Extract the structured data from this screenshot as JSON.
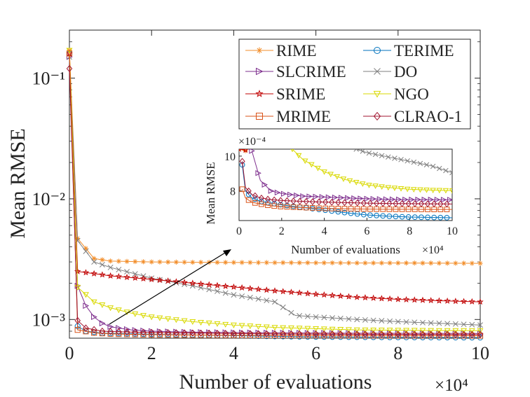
{
  "chart_data": [
    {
      "type": "line",
      "ylabel": "Mean RMSE",
      "xlabel": "Number of evaluations",
      "x_exponent_label": "×10⁴",
      "yscale": "log",
      "xlim": [
        0,
        10
      ],
      "ylim": [
        0.0007,
        0.25
      ],
      "x_ticks": [
        0,
        2,
        4,
        6,
        8,
        10
      ],
      "x_tick_labels": [
        "0",
        "2",
        "4",
        "6",
        "8",
        "10"
      ],
      "y_ticks": [
        0.001,
        0.01,
        0.1
      ],
      "y_tick_labels": [
        "10⁻³",
        "10⁻²",
        "10⁻¹"
      ],
      "grid": false,
      "legend_position": "top-right",
      "series": [
        {
          "name": "RIME",
          "color": "#f28e2b",
          "marker": "star",
          "x": [
            0,
            0.2,
            0.6,
            1,
            2,
            3,
            4,
            5,
            6,
            7,
            8,
            9,
            10
          ],
          "y": [
            0.17,
            0.0047,
            0.0032,
            0.00305,
            0.003,
            0.00298,
            0.00297,
            0.00296,
            0.00295,
            0.00294,
            0.00294,
            0.00293,
            0.00292
          ]
        },
        {
          "name": "TERIME",
          "color": "#0072bd",
          "marker": "circle",
          "x": [
            0,
            0.2,
            0.4,
            0.8,
            1.5,
            2,
            3,
            4,
            5,
            6,
            7,
            8,
            9,
            10
          ],
          "y": [
            0.16,
            0.00088,
            0.0008,
            0.00077,
            0.000762,
            0.000755,
            0.000745,
            0.000735,
            0.000725,
            0.000718,
            0.000715,
            0.000712,
            0.00071,
            0.000708
          ]
        },
        {
          "name": "SLCRIME",
          "color": "#7e2f8e",
          "marker": "triangle-right",
          "x": [
            0,
            0.2,
            0.4,
            0.6,
            0.8,
            1,
            1.5,
            2,
            3,
            4,
            5,
            6,
            7,
            8,
            9,
            10
          ],
          "y": [
            0.15,
            0.0019,
            0.0013,
            0.00105,
            0.00093,
            0.00087,
            0.00082,
            0.0008,
            0.000785,
            0.00078,
            0.000775,
            0.000772,
            0.00077,
            0.000768,
            0.000767,
            0.000766
          ]
        },
        {
          "name": "DO",
          "color": "#7f7f7f",
          "marker": "x",
          "x": [
            0,
            0.2,
            0.6,
            1,
            2,
            3,
            4,
            4.5,
            5,
            5.5,
            6,
            7,
            8,
            9,
            10
          ],
          "y": [
            0.15,
            0.0045,
            0.003,
            0.0027,
            0.0022,
            0.0019,
            0.0016,
            0.0015,
            0.0014,
            0.00108,
            0.00105,
            0.001,
            0.00096,
            0.00093,
            0.0009
          ]
        },
        {
          "name": "SRIME",
          "color": "#c00000",
          "marker": "pentagram",
          "x": [
            0,
            0.2,
            0.6,
            1,
            2,
            3,
            4,
            5,
            6,
            7,
            8,
            9,
            10
          ],
          "y": [
            0.16,
            0.0025,
            0.0024,
            0.0023,
            0.00215,
            0.002,
            0.00186,
            0.00173,
            0.00162,
            0.00153,
            0.00147,
            0.00143,
            0.0014
          ]
        },
        {
          "name": "NGO",
          "color": "#d9d900",
          "marker": "triangle-down",
          "x": [
            0,
            0.2,
            0.6,
            1,
            1.5,
            2,
            3,
            4,
            5,
            6,
            7,
            8,
            9,
            10
          ],
          "y": [
            0.17,
            0.00185,
            0.0014,
            0.00125,
            0.00113,
            0.00105,
            0.00096,
            0.0009,
            0.00086,
            0.00084,
            0.00082,
            0.000815,
            0.00081,
            0.000808
          ]
        },
        {
          "name": "MRIME",
          "color": "#d95319",
          "marker": "square",
          "x": [
            0,
            0.2,
            0.6,
            1,
            2,
            3,
            4,
            5,
            6,
            7,
            8,
            9,
            10
          ],
          "y": [
            0.16,
            0.00082,
            0.000775,
            0.00076,
            0.000748,
            0.000743,
            0.00074,
            0.000738,
            0.000737,
            0.000736,
            0.000735,
            0.000735,
            0.000734
          ]
        },
        {
          "name": "CLRAO-1",
          "color": "#a2142f",
          "marker": "diamond",
          "x": [
            0,
            0.2,
            0.4,
            0.8,
            1.5,
            2,
            3,
            4,
            5,
            6,
            7,
            8,
            9,
            10
          ],
          "y": [
            0.12,
            0.00098,
            0.00085,
            0.0008,
            0.000785,
            0.00078,
            0.000772,
            0.000765,
            0.00076,
            0.000757,
            0.000755,
            0.000753,
            0.000752,
            0.000751
          ]
        }
      ]
    },
    {
      "type": "line",
      "ylabel": "Mean RMSE",
      "xlabel": "Number of evaluations",
      "x_exponent_label": "×10⁴",
      "y_exponent_label": "×10⁻⁴",
      "yscale": "linear",
      "xlim": [
        0,
        10
      ],
      "ylim": [
        6.3,
        10.4
      ],
      "x_ticks": [
        0,
        2,
        4,
        6,
        8,
        10
      ],
      "x_tick_labels": [
        "0",
        "2",
        "4",
        "6",
        "8",
        "10"
      ],
      "y_ticks": [
        8,
        10
      ],
      "y_tick_labels": [
        "8",
        "10"
      ],
      "grid": false,
      "series": [
        {
          "name": "RIME",
          "x": [
            0,
            0.3
          ],
          "y": [
            10.4,
            10.3
          ]
        },
        {
          "name": "TERIME",
          "x": [
            0.15,
            0.3,
            0.6,
            1,
            1.5,
            2,
            3,
            4,
            5,
            6,
            7,
            8,
            9,
            10
          ],
          "y": [
            9.5,
            8.0,
            7.6,
            7.4,
            7.3,
            7.2,
            7.05,
            6.9,
            6.75,
            6.62,
            6.55,
            6.5,
            6.48,
            6.46
          ]
        },
        {
          "name": "SLCRIME",
          "x": [
            0.6,
            1,
            1.5,
            2,
            3,
            4,
            5,
            6,
            7,
            8,
            9,
            10
          ],
          "y": [
            10.3,
            8.6,
            8.0,
            7.85,
            7.7,
            7.65,
            7.6,
            7.55,
            7.52,
            7.5,
            7.5,
            7.49
          ]
        },
        {
          "name": "DO",
          "x": [
            5.5,
            6,
            7,
            8,
            9,
            10
          ],
          "y": [
            10.4,
            10.2,
            9.95,
            9.7,
            9.45,
            9.05
          ]
        },
        {
          "name": "SRIME",
          "x": [
            0,
            0.3
          ],
          "y": [
            10.4,
            10.35
          ]
        },
        {
          "name": "NGO",
          "x": [
            2.5,
            3,
            4,
            5,
            6,
            7,
            8,
            9,
            10
          ],
          "y": [
            10.4,
            9.8,
            9.1,
            8.65,
            8.35,
            8.2,
            8.1,
            8.05,
            8.02
          ]
        },
        {
          "name": "MRIME",
          "x": [
            0.15,
            0.3,
            0.6,
            1,
            1.5,
            2,
            3,
            4,
            5,
            6,
            7,
            8,
            9,
            10
          ],
          "y": [
            8.1,
            7.6,
            7.35,
            7.25,
            7.15,
            7.1,
            7.05,
            7.0,
            6.98,
            6.96,
            6.95,
            6.95,
            6.94,
            6.94
          ]
        },
        {
          "name": "CLRAO-1",
          "x": [
            0.15,
            0.3,
            0.6,
            1,
            1.5,
            2,
            3,
            4,
            5,
            6,
            7,
            8,
            9,
            10
          ],
          "y": [
            9.7,
            8.2,
            7.8,
            7.6,
            7.5,
            7.45,
            7.4,
            7.36,
            7.33,
            7.3,
            7.28,
            7.27,
            7.26,
            7.25
          ]
        }
      ]
    }
  ]
}
